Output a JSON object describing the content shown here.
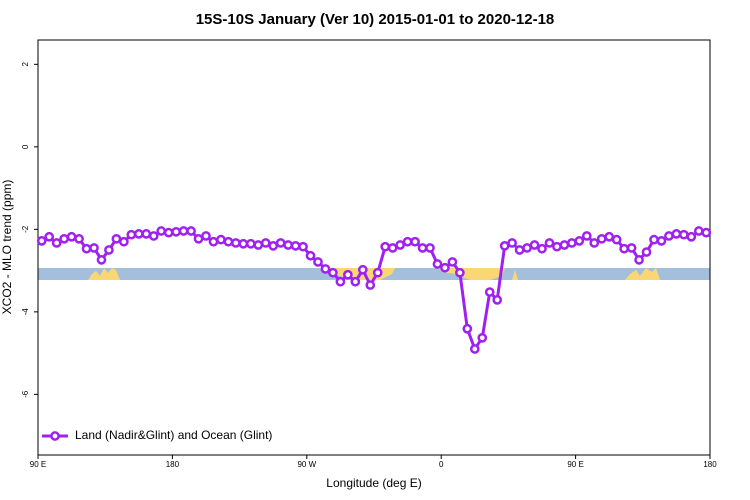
{
  "chart_data": {
    "type": "line",
    "title": "15S-10S January (Ver 10)   2015-01-01 to 2020-12-18",
    "xlabel": "Longitude (deg E)",
    "ylabel": "XCO2 - MLO trend (ppm)",
    "x": [
      92.5,
      97.5,
      102.5,
      107.5,
      112.5,
      117.5,
      122.5,
      127.5,
      132.5,
      137.5,
      142.5,
      147.5,
      152.5,
      157.5,
      162.5,
      167.5,
      172.5,
      177.5,
      182.5,
      187.5,
      192.5,
      197.5,
      202.5,
      207.5,
      212.5,
      217.5,
      222.5,
      227.5,
      232.5,
      237.5,
      242.5,
      247.5,
      252.5,
      257.5,
      262.5,
      267.5,
      272.5,
      277.5,
      282.5,
      287.5,
      292.5,
      297.5,
      302.5,
      307.5,
      312.5,
      317.5,
      322.5,
      327.5,
      332.5,
      337.5,
      342.5,
      347.5,
      352.5,
      357.5,
      362.5,
      367.5,
      372.5,
      377.5,
      382.5,
      387.5,
      392.5,
      397.5,
      402.5,
      407.5,
      412.5,
      417.5,
      422.5,
      427.5,
      432.5,
      437.5,
      442.5,
      447.5,
      452.5,
      457.5,
      462.5,
      467.5,
      472.5,
      477.5,
      482.5,
      487.5,
      492.5,
      497.5,
      502.5,
      507.5,
      512.5,
      517.5,
      522.5,
      527.5,
      532.5,
      537.5
    ],
    "series": [
      {
        "name": "Land (Nadir&Glint) and Ocean (Glint)",
        "color": "#a020f0",
        "values": [
          -2.28,
          -2.18,
          -2.33,
          -2.23,
          -2.18,
          -2.23,
          -2.47,
          -2.45,
          -2.74,
          -2.5,
          -2.23,
          -2.3,
          -2.13,
          -2.11,
          -2.11,
          -2.16,
          -2.04,
          -2.08,
          -2.06,
          -2.04,
          -2.04,
          -2.23,
          -2.16,
          -2.3,
          -2.25,
          -2.3,
          -2.33,
          -2.35,
          -2.35,
          -2.38,
          -2.33,
          -2.4,
          -2.33,
          -2.38,
          -2.4,
          -2.42,
          -2.64,
          -2.79,
          -2.96,
          -3.05,
          -3.27,
          -3.1,
          -3.27,
          -2.98,
          -3.35,
          -3.05,
          -2.42,
          -2.45,
          -2.38,
          -2.3,
          -2.3,
          -2.45,
          -2.45,
          -2.84,
          -2.93,
          -2.79,
          -3.05,
          -4.41,
          -4.9,
          -4.63,
          -3.52,
          -3.71,
          -2.4,
          -2.33,
          -2.5,
          -2.45,
          -2.38,
          -2.47,
          -2.33,
          -2.42,
          -2.38,
          -2.33,
          -2.28,
          -2.16,
          -2.33,
          -2.23,
          -2.18,
          -2.25,
          -2.47,
          -2.45,
          -2.74,
          -2.55,
          -2.25,
          -2.28,
          -2.16,
          -2.11,
          -2.13,
          -2.18,
          -2.04,
          -2.08
        ]
      }
    ],
    "xlim": [
      90,
      540
    ],
    "xticks": [
      {
        "value": 90,
        "label": "90 E"
      },
      180,
      {
        "value": 270,
        "label": "90 W"
      },
      {
        "value": 360,
        "label": "0"
      },
      {
        "value": 450,
        "label": "90 E"
      },
      {
        "value": 540,
        "label": "180"
      }
    ],
    "ylim": [
      -7.47,
      2.59
    ],
    "yticks": [
      -6,
      -4,
      -2,
      0,
      2
    ],
    "legend": "bottom-left"
  }
}
